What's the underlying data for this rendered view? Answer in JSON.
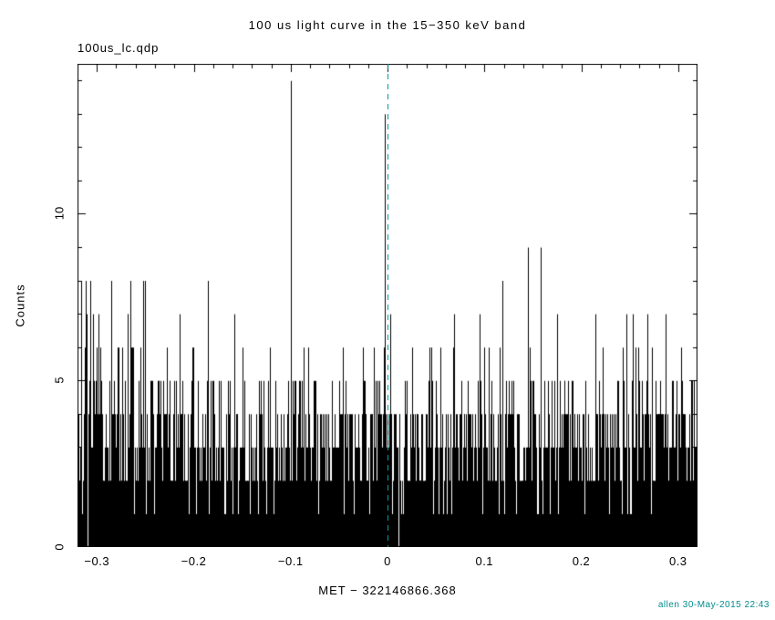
{
  "header": {
    "title": "100 us light curve in the 15−350 keV band",
    "dataset_label": "100us_lc.qdp"
  },
  "footer": {
    "credit": "allen 30-May-2015 22:43",
    "color": "#008B8B"
  },
  "chart_data": {
    "type": "bar",
    "title": "100 us light curve in the 15−350 keV band",
    "xlabel": "MET − 322146866.368",
    "ylabel": "Counts",
    "xlim": [
      -0.32,
      0.32
    ],
    "ylim": [
      0,
      14.5
    ],
    "x_major_ticks": [
      -0.3,
      -0.2,
      -0.1,
      0,
      0.1,
      0.2,
      0.3
    ],
    "x_minor_step": 0.02,
    "y_major_ticks": [
      0,
      5,
      10
    ],
    "y_minor_step": 1,
    "grid": false,
    "legend": null,
    "bar_color": "#000000",
    "n_bins": 1600,
    "noise": {
      "distribution": "poisson",
      "lambda": 2.5,
      "seed": 7
    },
    "marker_line": {
      "x": 0,
      "color": "#009E9E",
      "style": "dashed"
    },
    "notable_peaks": [
      {
        "x": -0.1,
        "counts": 14
      },
      {
        "x": -0.003,
        "counts": 13
      },
      {
        "x": 0.145,
        "counts": 9
      },
      {
        "x": 0.158,
        "counts": 9
      },
      {
        "x": -0.252,
        "counts": 8
      },
      {
        "x": -0.185,
        "counts": 8
      },
      {
        "x": -0.311,
        "counts": 7
      },
      {
        "x": -0.304,
        "counts": 7
      },
      {
        "x": -0.158,
        "counts": 7
      },
      {
        "x": 0.253,
        "counts": 7
      },
      {
        "x": 0.268,
        "counts": 7
      },
      {
        "x": 0.287,
        "counts": 7
      },
      {
        "x": -0.122,
        "counts": 6
      },
      {
        "x": 0.1,
        "counts": 6
      }
    ]
  }
}
